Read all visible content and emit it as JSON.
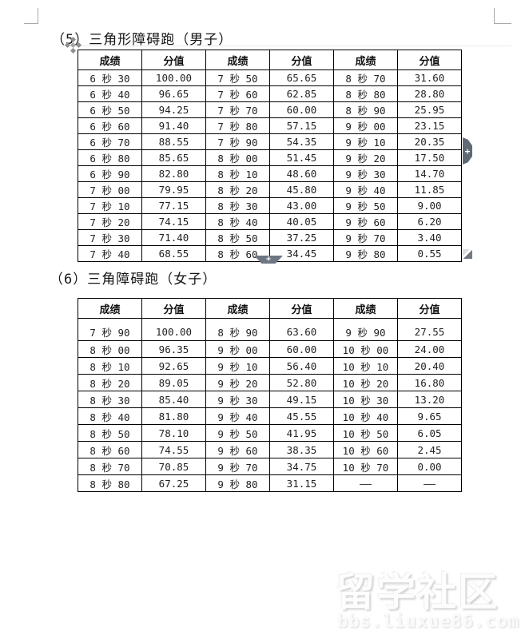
{
  "sections": {
    "men_title": "（5）三角形障碍跑（男子）",
    "women_title": "（6）三角障碍跑（女子）"
  },
  "tables": {
    "men": {
      "headers": [
        "成绩",
        "分值",
        "成绩",
        "分值",
        "成绩",
        "分值"
      ],
      "rows": [
        [
          "6 秒 30",
          "100.00",
          "7 秒 50",
          "65.65",
          "8 秒 70",
          "31.60"
        ],
        [
          "6 秒 40",
          "96.65",
          "7 秒 60",
          "62.85",
          "8 秒 80",
          "28.80"
        ],
        [
          "6 秒 50",
          "94.25",
          "7 秒 70",
          "60.00",
          "8 秒 90",
          "25.95"
        ],
        [
          "6 秒 60",
          "91.40",
          "7 秒 80",
          "57.15",
          "9 秒 00",
          "23.15"
        ],
        [
          "6 秒 70",
          "88.55",
          "7 秒 90",
          "54.35",
          "9 秒 10",
          "20.35"
        ],
        [
          "6 秒 80",
          "85.65",
          "8 秒 00",
          "51.45",
          "9 秒 20",
          "17.50"
        ],
        [
          "6 秒 90",
          "82.80",
          "8 秒 10",
          "48.60",
          "9 秒 30",
          "14.70"
        ],
        [
          "7 秒 00",
          "79.95",
          "8 秒 20",
          "45.80",
          "9 秒 40",
          "11.85"
        ],
        [
          "7 秒 10",
          "77.15",
          "8 秒 30",
          "43.00",
          "9 秒 50",
          "9.00"
        ],
        [
          "7 秒 20",
          "74.15",
          "8 秒 40",
          "40.05",
          "9 秒 60",
          "6.20"
        ],
        [
          "7 秒 30",
          "71.40",
          "8 秒 50",
          "37.25",
          "9 秒 70",
          "3.40"
        ],
        [
          "7 秒 40",
          "68.55",
          "8 秒 60",
          "34.45",
          "9 秒 80",
          "0.55"
        ]
      ]
    },
    "women": {
      "headers": [
        "成绩",
        "分值",
        "成绩",
        "分值",
        "成绩",
        "分值"
      ],
      "rows": [
        [
          "7 秒 90",
          "100.00",
          "8 秒 90",
          "63.60",
          "9 秒 90",
          "27.55"
        ],
        [
          "8 秒 00",
          "96.35",
          "9 秒 00",
          "60.00",
          "10 秒 00",
          "24.00"
        ],
        [
          "8 秒 10",
          "92.65",
          "9 秒 10",
          "56.40",
          "10 秒 10",
          "20.40"
        ],
        [
          "8 秒 20",
          "89.05",
          "9 秒 20",
          "52.80",
          "10 秒 20",
          "16.80"
        ],
        [
          "8 秒 30",
          "85.40",
          "9 秒 30",
          "49.15",
          "10 秒 30",
          "13.20"
        ],
        [
          "8 秒 40",
          "81.80",
          "9 秒 40",
          "45.55",
          "10 秒 40",
          "9.65"
        ],
        [
          "8 秒 50",
          "78.10",
          "9 秒 50",
          "41.95",
          "10 秒 50",
          "6.05"
        ],
        [
          "8 秒 60",
          "74.55",
          "9 秒 60",
          "38.35",
          "10 秒 60",
          "2.45"
        ],
        [
          "8 秒 70",
          "70.85",
          "9 秒 70",
          "34.75",
          "10 秒 70",
          "0.00"
        ],
        [
          "8 秒 80",
          "67.25",
          "9 秒 80",
          "31.15",
          "——",
          "——"
        ]
      ]
    }
  },
  "handles": {
    "add_row_label": "+",
    "add_column_label": "+"
  },
  "watermark": {
    "title": "留学社区",
    "url": "bbs.liuxue86.com"
  },
  "colors": {
    "table_border": "#000000",
    "handle_gray": "#5f6a75",
    "crop_mark_gray": "#a9a9a9"
  }
}
